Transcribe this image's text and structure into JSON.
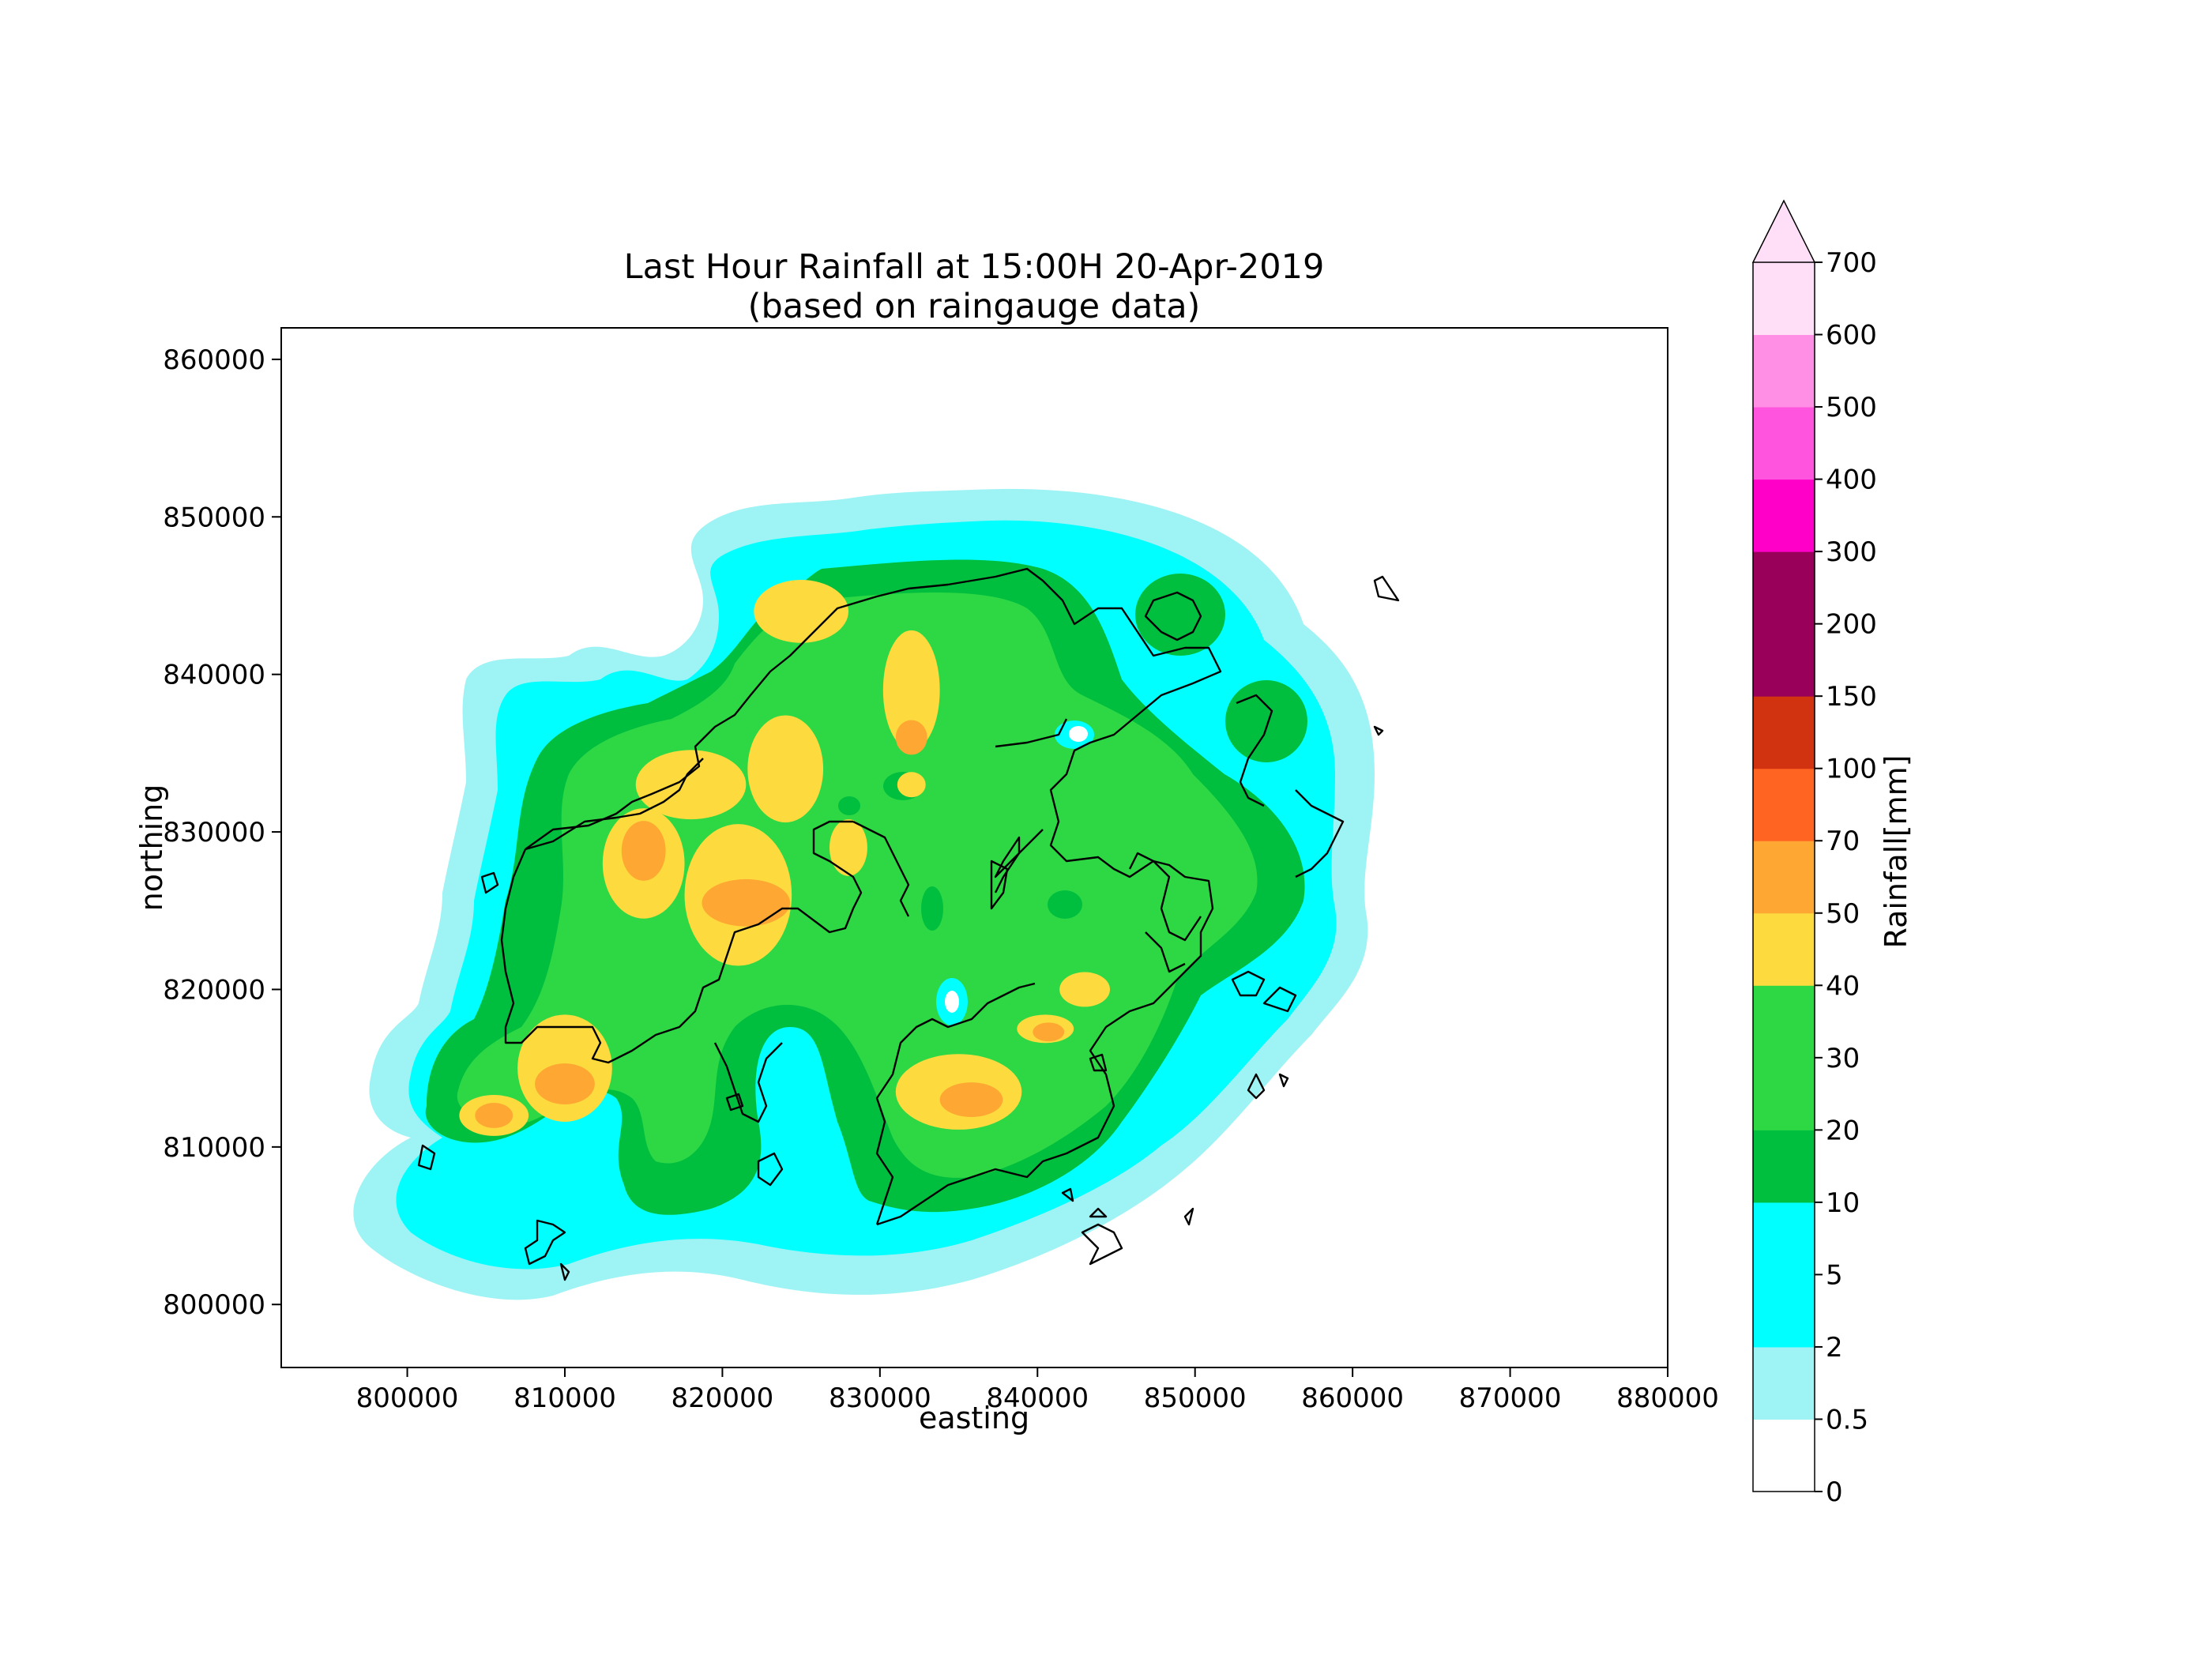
{
  "chart_data": {
    "type": "heatmap",
    "title": "Last Hour Rainfall at 15:00H 20-Apr-2019",
    "subtitle": "(based on raingauge data)",
    "xlabel": "easting",
    "ylabel": "northing",
    "xlim": [
      792000,
      880000
    ],
    "ylim": [
      796000,
      862000
    ],
    "xticks": [
      "800000",
      "810000",
      "820000",
      "830000",
      "840000",
      "850000",
      "860000",
      "870000",
      "880000"
    ],
    "yticks": [
      "800000",
      "810000",
      "820000",
      "830000",
      "840000",
      "850000",
      "860000"
    ],
    "colorbar": {
      "label": "Rainfall[mm]",
      "extend": "max",
      "levels": [
        "0",
        "0.5",
        "2",
        "5",
        "10",
        "20",
        "30",
        "40",
        "50",
        "70",
        "100",
        "150",
        "200",
        "300",
        "400",
        "500",
        "600",
        "700"
      ],
      "colors": [
        "#ffffff",
        "#9ef3f5",
        "#00ffff",
        "#00ffff",
        "#00bf3f",
        "#2ed845",
        "#2ed845",
        "#fddb3e",
        "#ffa733",
        "#ff6422",
        "#d13210",
        "#98005a",
        "#98005a",
        "#ff00c8",
        "#ff55de",
        "#ff8fe5",
        "#ffdff7"
      ],
      "extend_color": "#ffdff7"
    },
    "rainfall_areas": [
      {
        "easting": 818000,
        "northing": 833000,
        "rx": 3500,
        "ry": 2200,
        "band": "40-50"
      },
      {
        "easting": 825000,
        "northing": 844000,
        "rx": 3000,
        "ry": 2000,
        "band": "40-50"
      },
      {
        "easting": 832000,
        "northing": 839000,
        "rx": 1800,
        "ry": 3800,
        "band": "40-50"
      },
      {
        "easting": 824000,
        "northing": 834000,
        "rx": 2400,
        "ry": 3400,
        "band": "40-50"
      },
      {
        "easting": 821000,
        "northing": 826000,
        "rx": 3400,
        "ry": 4500,
        "band": "40-50"
      },
      {
        "easting": 815000,
        "northing": 828000,
        "rx": 2600,
        "ry": 3500,
        "band": "40-50"
      },
      {
        "easting": 810000,
        "northing": 815000,
        "rx": 3000,
        "ry": 3400,
        "band": "40-50"
      },
      {
        "easting": 805500,
        "northing": 812000,
        "rx": 2200,
        "ry": 1300,
        "band": "40-50"
      },
      {
        "easting": 835000,
        "northing": 813500,
        "rx": 4000,
        "ry": 2400,
        "band": "40-50"
      },
      {
        "easting": 840500,
        "northing": 817500,
        "rx": 1800,
        "ry": 900,
        "band": "40-50"
      },
      {
        "easting": 843000,
        "northing": 820000,
        "rx": 1600,
        "ry": 1100,
        "band": "40-50"
      },
      {
        "easting": 828000,
        "northing": 829000,
        "rx": 1200,
        "ry": 1800,
        "band": "40-50"
      },
      {
        "easting": 832000,
        "northing": 833000,
        "rx": 900,
        "ry": 800,
        "band": "40-50"
      },
      {
        "easting": 815000,
        "northing": 828800,
        "rx": 1400,
        "ry": 1900,
        "band": "50-70"
      },
      {
        "easting": 821500,
        "northing": 825500,
        "rx": 2800,
        "ry": 1500,
        "band": "50-70"
      },
      {
        "easting": 832000,
        "northing": 836000,
        "rx": 1000,
        "ry": 1100,
        "band": "50-70"
      },
      {
        "easting": 810000,
        "northing": 814000,
        "rx": 1900,
        "ry": 1300,
        "band": "50-70"
      },
      {
        "easting": 805500,
        "northing": 812000,
        "rx": 1200,
        "ry": 800,
        "band": "50-70"
      },
      {
        "easting": 835800,
        "northing": 813000,
        "rx": 2000,
        "ry": 1100,
        "band": "50-70"
      },
      {
        "easting": 840700,
        "northing": 817300,
        "rx": 1000,
        "ry": 600,
        "band": "50-70"
      }
    ]
  }
}
